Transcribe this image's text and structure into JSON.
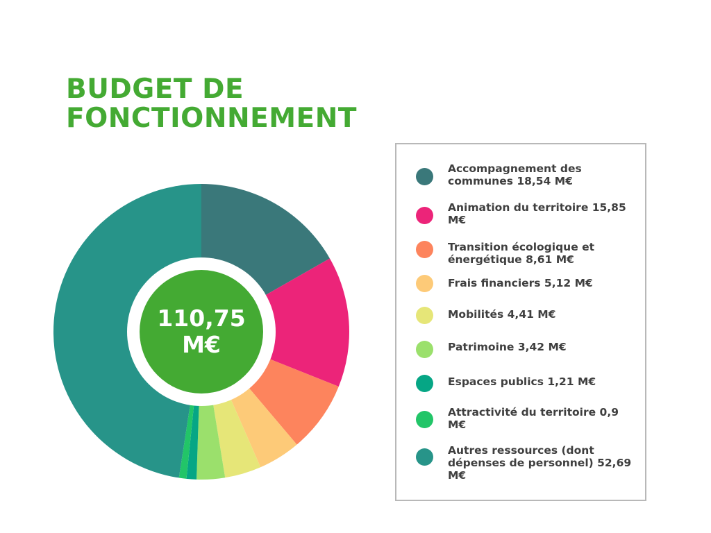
{
  "chart_data": {
    "type": "pie",
    "title": "BUDGET DE FONCTIONNEMENT",
    "center_label": "110,75 M€",
    "unit": "M€",
    "series": [
      {
        "label": "Accompagnement des communes 18,54 M€",
        "value": 18.54,
        "color": "#3a787a"
      },
      {
        "label": "Animation du territoire 15,85 M€",
        "value": 15.85,
        "color": "#ec2479"
      },
      {
        "label": "Transition écologique et énergétique 8,61 M€",
        "value": 8.61,
        "color": "#fd845d"
      },
      {
        "label": "Frais financiers 5,12 M€",
        "value": 5.12,
        "color": "#fdca78"
      },
      {
        "label": "Mobilités 4,41 M€",
        "value": 4.41,
        "color": "#e6e678"
      },
      {
        "label": "Patrimoine 3,42 M€",
        "value": 3.42,
        "color": "#9be06c"
      },
      {
        "label": "Espaces publics 1,21 M€",
        "value": 1.21,
        "color": "#06a685"
      },
      {
        "label": "Attractivité du territoire 0,9 M€",
        "value": 0.9,
        "color": "#22c568"
      },
      {
        "label": "Autres ressources (dont dépenses de personnel) 52,69 M€",
        "value": 52.69,
        "color": "#279489"
      }
    ],
    "legend_position": "right",
    "grid": false
  },
  "colors": {
    "title": "#44aa33",
    "center": "#44aa33",
    "legend_border": "#b8b8b8",
    "legend_text": "#3f3f3f"
  }
}
